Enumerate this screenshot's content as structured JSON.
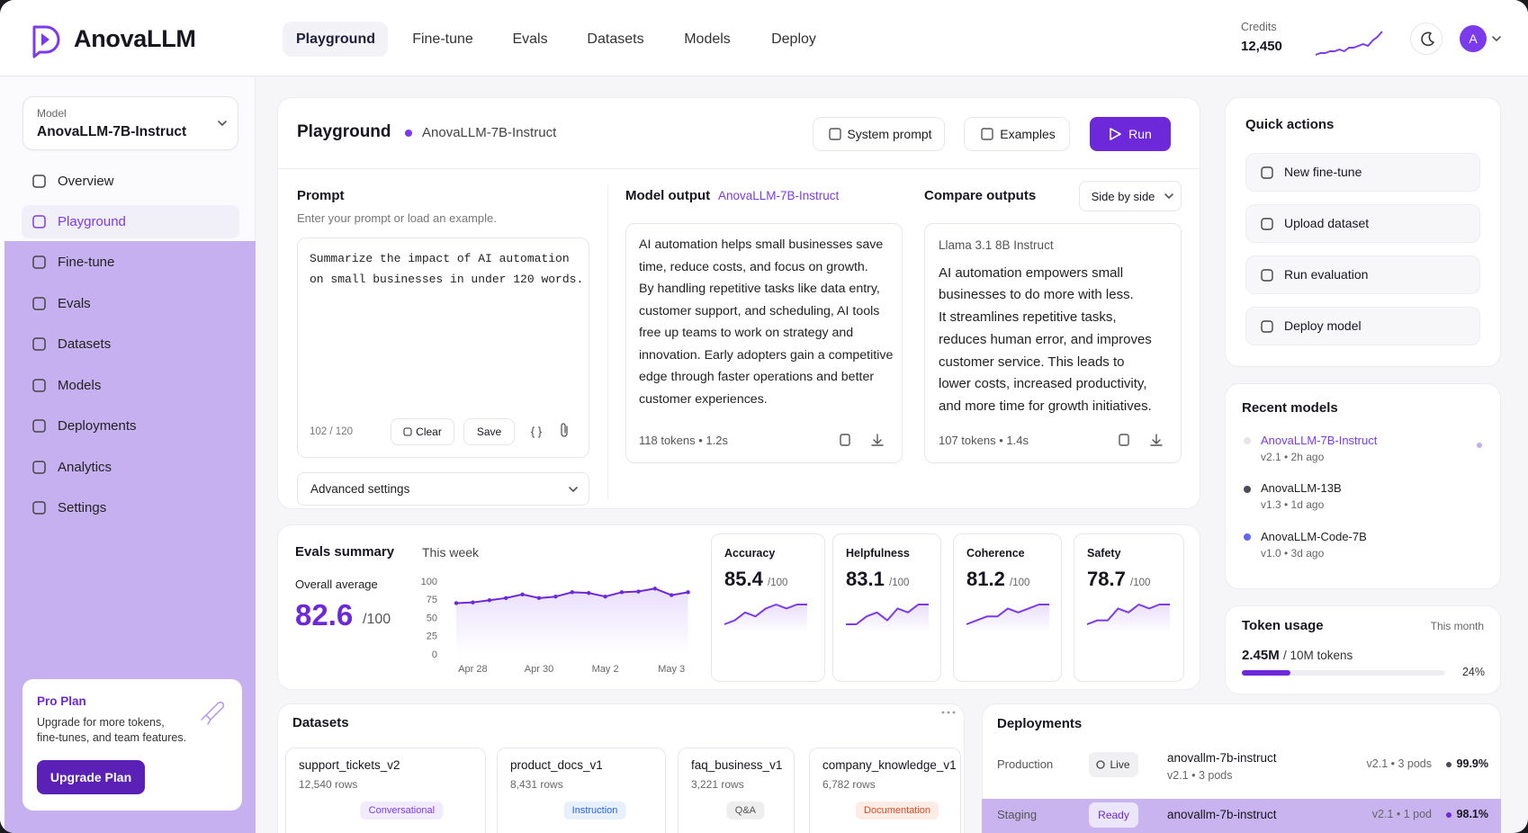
{
  "header": {
    "brand": "AnovaLLM",
    "nav": [
      "Playground",
      "Fine-tune",
      "Evals",
      "Datasets",
      "Models",
      "Deploy"
    ],
    "credits_label": "Credits",
    "credits": "12,450",
    "avatar": "A"
  },
  "sidebar": {
    "model_label": "Model",
    "model": "AnovaLLM-7B-Instruct",
    "items": [
      "Overview",
      "Playground",
      "Fine-tune",
      "Evals",
      "Datasets",
      "Models",
      "Deployments",
      "Analytics",
      "Settings"
    ],
    "pro_title": "Pro Plan",
    "pro_text": [
      "Upgrade for more tokens,",
      "fine-tunes, and team features."
    ],
    "pro_button": "Upgrade Plan"
  },
  "playground": {
    "title": "Playground",
    "model": "AnovaLLM-7B-Instruct",
    "buttons": [
      "System prompt",
      "Examples",
      "Run"
    ],
    "prompt": {
      "title": "Prompt",
      "hint": "Enter your prompt or load an example.",
      "lines": [
        "Summarize the impact of AI automation",
        "on small businesses in under 120 words."
      ],
      "count": "102 / 120",
      "clear": "Clear",
      "save": "Save",
      "format": "{ }",
      "advanced": "Advanced settings"
    },
    "output": {
      "title": "Model output",
      "model": "AnovaLLM-7B-Instruct",
      "lines": [
        "AI automation helps small businesses save",
        "time, reduce costs, and focus on growth.",
        "By handling repetitive tasks like data entry,",
        "customer support, and scheduling, AI tools",
        "free up teams to work on strategy and",
        "innovation. Early adopters gain a competitive",
        "edge through faster operations and better",
        "customer experiences."
      ],
      "meta": "118 tokens • 1.2s"
    },
    "compare": {
      "title": "Compare outputs",
      "mode": "Side by side",
      "model": "Llama 3.1 8B Instruct",
      "lines": [
        "AI automation empowers small",
        "businesses to do more with less.",
        "It streamlines repetitive tasks,",
        "reduces human error, and improves",
        "customer service. This leads to",
        "lower costs, increased productivity,",
        "and more time for growth initiatives."
      ],
      "meta": "107 tokens • 1.4s"
    }
  },
  "evals": {
    "title": "Evals summary",
    "average_label": "Overall average",
    "average": 82.6,
    "unit": "/100",
    "metrics": [
      {
        "name": "Accuracy",
        "score": 85.4
      },
      {
        "name": "Helpfulness",
        "score": 83.1
      },
      {
        "name": "Coherence",
        "score": 81.2
      },
      {
        "name": "Safety",
        "score": 78.7
      }
    ]
  },
  "quick_actions": {
    "title": "Quick actions",
    "items": [
      "New fine-tune",
      "Upload dataset",
      "Run evaluation",
      "Deploy model"
    ]
  },
  "recent_models": {
    "title": "Recent models",
    "items": [
      {
        "name": "AnovaLLM-7B-Instruct",
        "meta": "v2.1 • 2h ago",
        "color": "#e5e5ea"
      },
      {
        "name": "AnovaLLM-13B",
        "meta": "v1.3 • 1d ago",
        "color": "#4b4b55"
      },
      {
        "name": "AnovaLLM-Code-7B",
        "meta": "v1.0 • 3d ago",
        "color": "#6366f1"
      }
    ]
  },
  "token_usage": {
    "title": "Token usage",
    "period": "This month",
    "used": "2.45M",
    "total": "/ 10M tokens",
    "percent": 24,
    "percent_label": "24%"
  },
  "datasets": {
    "title": "Datasets",
    "items": [
      {
        "name": "support_tickets_v2",
        "rows": "12,540 rows",
        "tag": "Conversational",
        "color": "#7c3aed",
        "bg": "#f1ebfd"
      },
      {
        "name": "product_docs_v1",
        "rows": "8,431 rows",
        "tag": "Instruction",
        "color": "#2563eb",
        "bg": "#e8effd"
      },
      {
        "name": "faq_business_v1",
        "rows": "3,221 rows",
        "tag": "Q&A",
        "color": "#555555",
        "bg": "#eeeeee"
      },
      {
        "name": "company_knowledge_v1",
        "rows": "6,782 rows",
        "tag": "Documentation",
        "color": "#dc4a26",
        "bg": "#fdebe5"
      }
    ]
  },
  "deployments": {
    "title": "Deployments",
    "rows": [
      {
        "env": "Production",
        "status": "Live",
        "name": "anovallm-7b-instruct",
        "sub": "v2.1 • 3 pods",
        "meta": "v2.1 • 3 pods",
        "uptime": "99.9%",
        "color": "#4b4b55"
      },
      {
        "env": "Staging",
        "status": "Ready",
        "name": "anovallm-7b-instruct",
        "meta": "v2.1 • 1 pod",
        "uptime": "98.1%",
        "color": "#6d28d9"
      }
    ]
  },
  "chart_data": [
    {
      "type": "line",
      "title": "This week",
      "categories": [
        null,
        "Apr 28",
        null,
        null,
        null,
        "Apr 30",
        null,
        null,
        null,
        "May 2",
        null,
        null,
        null,
        "May 3",
        null
      ],
      "values": [
        71,
        72,
        75,
        78,
        83,
        78,
        80,
        86,
        85,
        80,
        86,
        87,
        91,
        82,
        86
      ],
      "color": "#6d28d9",
      "ylim": [
        0,
        100
      ],
      "yticks": [
        0,
        25,
        50,
        75,
        100
      ]
    },
    {
      "type": "line",
      "values": [
        3,
        4,
        4,
        5,
        5,
        6,
        5,
        7,
        7,
        8,
        9,
        8,
        11,
        13,
        16
      ],
      "color": "#7c3aed"
    },
    {
      "type": "line",
      "values": [
        2,
        3,
        5,
        4,
        6,
        7,
        6,
        7,
        7
      ],
      "color": "#7c3aed"
    },
    {
      "type": "line",
      "values": [
        2,
        2,
        4,
        5,
        3,
        6,
        5,
        7,
        7
      ],
      "color": "#7c3aed"
    },
    {
      "type": "line",
      "values": [
        2,
        3,
        4,
        4,
        6,
        5,
        6,
        7,
        7
      ],
      "color": "#7c3aed"
    },
    {
      "type": "line",
      "values": [
        2,
        3,
        3,
        6,
        5,
        7,
        6,
        7,
        7
      ],
      "color": "#7c3aed"
    }
  ]
}
